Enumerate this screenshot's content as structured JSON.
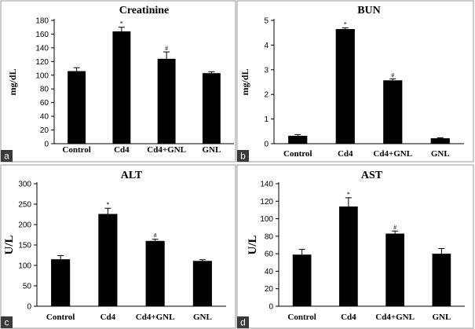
{
  "chart_data": [
    {
      "panel": "a",
      "type": "bar",
      "title": "Creatinine",
      "ylabel": "mg/dL",
      "categories": [
        "Control",
        "Cd4",
        "Cd4+GNL",
        "GNL"
      ],
      "values": [
        106,
        164,
        124,
        103
      ],
      "errors": [
        5,
        6,
        10,
        2
      ],
      "annotations": [
        "",
        "*",
        "#",
        ""
      ],
      "ylim": [
        0,
        180
      ],
      "ticks": [
        0,
        20,
        40,
        60,
        80,
        100,
        120,
        140,
        160,
        180
      ]
    },
    {
      "panel": "b",
      "type": "bar",
      "title": "BUN",
      "ylabel": "mg/dL",
      "categories": [
        "Control",
        "Cd4",
        "Cd4+GNL",
        "GNL"
      ],
      "values": [
        0.32,
        4.65,
        2.57,
        0.22
      ],
      "errors": [
        0.05,
        0.05,
        0.06,
        0.02
      ],
      "annotations": [
        "",
        "*",
        "#",
        ""
      ],
      "ylim": [
        0,
        5
      ],
      "ticks": [
        0,
        1,
        2,
        3,
        4,
        5
      ]
    },
    {
      "panel": "c",
      "type": "bar",
      "title": "ALT",
      "ylabel": "U/L",
      "categories": [
        "Control",
        "Cd4",
        "Cd4+GNL",
        "GNL"
      ],
      "values": [
        115,
        226,
        160,
        111
      ],
      "errors": [
        9,
        14,
        4,
        3
      ],
      "annotations": [
        "",
        "*",
        "#",
        ""
      ],
      "ylim": [
        0,
        300
      ],
      "ticks": [
        0,
        50,
        100,
        150,
        200,
        250,
        300
      ]
    },
    {
      "panel": "d",
      "type": "bar",
      "title": "AST",
      "ylabel": "U/L",
      "categories": [
        "Control",
        "Cd4",
        "Cd4+GNL",
        "GNL"
      ],
      "values": [
        59,
        114,
        83,
        60
      ],
      "errors": [
        6,
        10,
        3,
        6
      ],
      "annotations": [
        "",
        "*",
        "#",
        ""
      ],
      "ylim": [
        0,
        140
      ],
      "ticks": [
        0,
        20,
        40,
        60,
        80,
        100,
        120,
        140
      ]
    }
  ]
}
